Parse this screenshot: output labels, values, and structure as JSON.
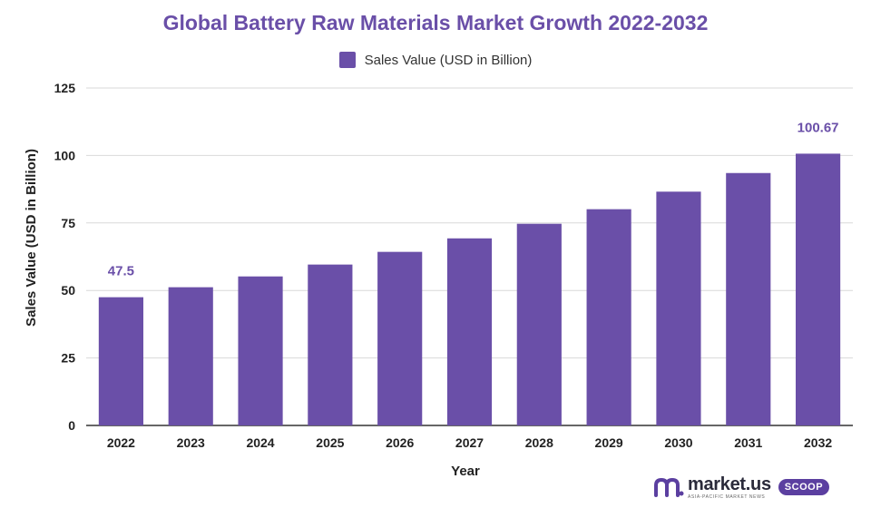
{
  "chart_data": {
    "type": "bar",
    "title": "Global Battery Raw Materials Market Growth 2022-2032",
    "categories": [
      "2022",
      "2023",
      "2024",
      "2025",
      "2026",
      "2027",
      "2028",
      "2029",
      "2030",
      "2031",
      "2032"
    ],
    "series": [
      {
        "name": "Sales Value (USD in Billion)",
        "values": [
          47.5,
          51.2,
          55.2,
          59.6,
          64.3,
          69.3,
          74.7,
          80.1,
          86.6,
          93.5,
          100.67
        ],
        "color": "#6a4fa8"
      }
    ],
    "data_labels": [
      {
        "category": "2022",
        "text": "47.5"
      },
      {
        "category": "2032",
        "text": "100.67"
      }
    ],
    "xlabel": "Year",
    "ylabel": "Sales Value (USD in Billion)",
    "ylim": [
      0,
      125
    ],
    "yticks": [
      0,
      25,
      50,
      75,
      100,
      125
    ],
    "grid": true,
    "legend_position": "top-center"
  },
  "brand": {
    "name": "market.us",
    "tagline": "ASIA-PACIFIC MARKET NEWS",
    "badge": "SCOOP"
  }
}
